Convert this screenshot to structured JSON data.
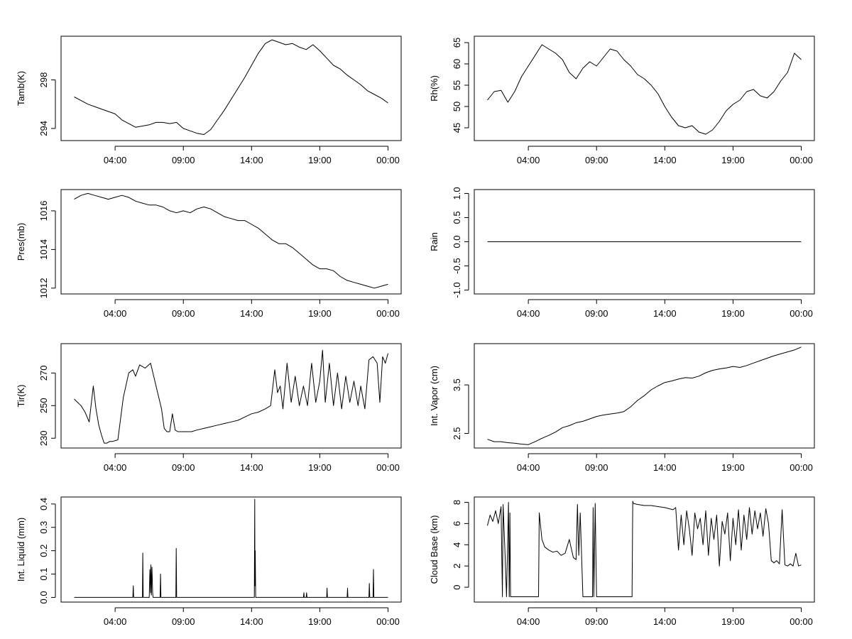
{
  "chart_data": [
    {
      "type": "line",
      "ylabel": "Tamb(K)",
      "xlabel": "",
      "x_ticks": [
        "04:00",
        "09:00",
        "14:00",
        "19:00",
        "00:00"
      ],
      "y_ticks": [
        294,
        298
      ],
      "ylim": [
        293.0,
        301.6
      ],
      "series": [
        {
          "x": [
            1.0,
            1.5,
            2.0,
            2.5,
            3.0,
            3.5,
            4.0,
            4.5,
            5.0,
            5.5,
            6.0,
            6.5,
            7.0,
            7.5,
            8.0,
            8.5,
            9.0,
            9.5,
            10.0,
            10.5,
            11.0,
            11.5,
            12.0,
            12.5,
            13.0,
            13.5,
            14.0,
            14.5,
            15.0,
            15.5,
            16.0,
            16.5,
            17.0,
            17.5,
            18.0,
            18.5,
            19.0,
            19.5,
            20.0,
            20.5,
            21.0,
            21.5,
            22.0,
            22.5,
            23.0,
            23.5,
            24.0
          ],
          "y": [
            296.6,
            296.3,
            296.0,
            295.8,
            295.6,
            295.4,
            295.2,
            294.7,
            294.4,
            294.1,
            294.2,
            294.3,
            294.5,
            294.5,
            294.4,
            294.5,
            294.0,
            293.8,
            293.6,
            293.5,
            293.9,
            294.7,
            295.5,
            296.4,
            297.3,
            298.2,
            299.2,
            300.2,
            301.0,
            301.3,
            301.1,
            300.9,
            301.0,
            300.7,
            300.5,
            300.9,
            300.4,
            299.8,
            299.2,
            298.9,
            298.4,
            298.0,
            297.6,
            297.1,
            296.8,
            296.5,
            296.1
          ]
        }
      ]
    },
    {
      "type": "line",
      "ylabel": "Rh(%)",
      "xlabel": "",
      "x_ticks": [
        "04:00",
        "09:00",
        "14:00",
        "19:00",
        "00:00"
      ],
      "y_ticks": [
        45,
        50,
        55,
        60,
        65
      ],
      "ylim": [
        42.0,
        66.5
      ],
      "series": [
        {
          "x": [
            1.0,
            1.5,
            2.0,
            2.5,
            3.0,
            3.5,
            4.0,
            4.5,
            5.0,
            5.5,
            6.0,
            6.5,
            7.0,
            7.5,
            8.0,
            8.5,
            9.0,
            9.5,
            10.0,
            10.5,
            11.0,
            11.5,
            12.0,
            12.5,
            13.0,
            13.5,
            14.0,
            14.5,
            15.0,
            15.5,
            16.0,
            16.5,
            17.0,
            17.5,
            18.0,
            18.5,
            19.0,
            19.5,
            20.0,
            20.5,
            21.0,
            21.5,
            22.0,
            22.5,
            23.0,
            23.5,
            24.0
          ],
          "y": [
            51.5,
            53.5,
            53.8,
            51.0,
            53.5,
            57.0,
            59.5,
            62.0,
            64.5,
            63.5,
            62.5,
            61.0,
            58.0,
            56.5,
            59.0,
            60.5,
            59.5,
            61.5,
            63.5,
            63.0,
            61.0,
            59.5,
            57.5,
            56.5,
            55.0,
            53.0,
            50.0,
            47.5,
            45.5,
            45.0,
            45.5,
            44.0,
            43.5,
            44.5,
            46.5,
            49.0,
            50.5,
            51.5,
            53.5,
            54.0,
            52.5,
            52.0,
            53.5,
            56.0,
            58.0,
            62.5,
            61.0
          ]
        }
      ]
    },
    {
      "type": "line",
      "ylabel": "Pres(mb)",
      "xlabel": "",
      "x_ticks": [
        "04:00",
        "09:00",
        "14:00",
        "19:00",
        "00:00"
      ],
      "y_ticks": [
        1012,
        1014,
        1016
      ],
      "ylim": [
        1011.7,
        1017.1
      ],
      "series": [
        {
          "x": [
            1.0,
            1.5,
            2.0,
            2.5,
            3.0,
            3.5,
            4.0,
            4.5,
            5.0,
            5.5,
            6.0,
            6.5,
            7.0,
            7.5,
            8.0,
            8.5,
            9.0,
            9.5,
            10.0,
            10.5,
            11.0,
            11.5,
            12.0,
            12.5,
            13.0,
            13.5,
            14.0,
            14.5,
            15.0,
            15.5,
            16.0,
            16.5,
            17.0,
            17.5,
            18.0,
            18.5,
            19.0,
            19.5,
            20.0,
            20.5,
            21.0,
            21.5,
            22.0,
            22.5,
            23.0,
            23.5,
            24.0
          ],
          "y": [
            1016.6,
            1016.8,
            1016.9,
            1016.8,
            1016.7,
            1016.6,
            1016.7,
            1016.8,
            1016.7,
            1016.5,
            1016.4,
            1016.3,
            1016.3,
            1016.2,
            1016.0,
            1015.9,
            1016.0,
            1015.9,
            1016.1,
            1016.2,
            1016.1,
            1015.9,
            1015.7,
            1015.6,
            1015.5,
            1015.5,
            1015.3,
            1015.1,
            1014.8,
            1014.5,
            1014.3,
            1014.3,
            1014.1,
            1013.8,
            1013.5,
            1013.2,
            1013.0,
            1013.0,
            1012.9,
            1012.6,
            1012.4,
            1012.3,
            1012.2,
            1012.1,
            1012.0,
            1012.1,
            1012.2
          ]
        }
      ]
    },
    {
      "type": "line",
      "ylabel": "Rain",
      "xlabel": "",
      "x_ticks": [
        "04:00",
        "09:00",
        "14:00",
        "19:00",
        "00:00"
      ],
      "y_ticks": [
        "-1.0",
        "-0.5",
        "0.0",
        "0.5",
        "1.0"
      ],
      "ylim": [
        -1.08,
        1.08
      ],
      "series": [
        {
          "x": [
            1.0,
            24.0
          ],
          "y": [
            0.0,
            0.0
          ]
        }
      ]
    },
    {
      "type": "line",
      "ylabel": "Tir(K)",
      "xlabel": "",
      "x_ticks": [
        "04:00",
        "09:00",
        "14:00",
        "19:00",
        "00:00"
      ],
      "y_ticks": [
        230,
        250,
        270
      ],
      "ylim": [
        224.0,
        288.0
      ],
      "series": [
        {
          "x": [
            1.0,
            1.5,
            1.8,
            2.1,
            2.4,
            2.6,
            2.8,
            3.0,
            3.2,
            3.4,
            3.6,
            3.8,
            4.2,
            4.6,
            5.0,
            5.3,
            5.5,
            5.8,
            6.2,
            6.6,
            7.0,
            7.4,
            7.6,
            7.8,
            8.0,
            8.2,
            8.4,
            8.6,
            8.8,
            9.0,
            9.6,
            10.0,
            10.5,
            11.0,
            11.5,
            12.0,
            12.5,
            13.0,
            13.5,
            14.0,
            14.5,
            15.0,
            15.4,
            15.7,
            15.9,
            16.1,
            16.3,
            16.6,
            16.9,
            17.2,
            17.5,
            17.8,
            18.1,
            18.4,
            18.7,
            19.0,
            19.2,
            19.4,
            19.7,
            20.0,
            20.3,
            20.6,
            20.9,
            21.2,
            21.5,
            21.8,
            22.0,
            22.3,
            22.6,
            22.9,
            23.2,
            23.4,
            23.6,
            23.8,
            24.0
          ],
          "y": [
            254,
            250,
            246,
            240,
            262,
            248,
            238,
            232,
            227,
            227,
            228,
            228,
            229,
            255,
            270,
            272,
            268,
            275,
            273,
            276,
            262,
            248,
            236,
            234,
            234,
            245,
            235,
            234,
            234,
            234,
            234,
            235,
            236,
            237,
            238,
            239,
            240,
            241,
            243,
            245,
            246,
            248,
            250,
            272,
            258,
            262,
            248,
            276,
            252,
            268,
            250,
            262,
            250,
            276,
            252,
            265,
            284,
            252,
            276,
            250,
            270,
            248,
            268,
            252,
            265,
            250,
            262,
            248,
            278,
            280,
            276,
            252,
            280,
            276,
            282
          ]
        }
      ]
    },
    {
      "type": "line",
      "ylabel": "Int. Vapor (cm)",
      "xlabel": "",
      "x_ticks": [
        "04:00",
        "09:00",
        "14:00",
        "19:00",
        "00:00"
      ],
      "y_ticks": [
        2.5,
        3.5
      ],
      "ylim": [
        2.2,
        4.35
      ],
      "series": [
        {
          "x": [
            1.0,
            1.5,
            2.0,
            2.5,
            3.0,
            3.5,
            4.0,
            4.5,
            5.0,
            5.5,
            6.0,
            6.5,
            7.0,
            7.5,
            8.0,
            8.5,
            9.0,
            9.5,
            10.0,
            10.5,
            11.0,
            11.5,
            12.0,
            12.5,
            13.0,
            13.5,
            14.0,
            14.5,
            15.0,
            15.5,
            16.0,
            16.5,
            17.0,
            17.5,
            18.0,
            18.5,
            19.0,
            19.5,
            20.0,
            20.5,
            21.0,
            21.5,
            22.0,
            22.5,
            23.0,
            23.5,
            24.0
          ],
          "y": [
            2.38,
            2.33,
            2.33,
            2.31,
            2.3,
            2.28,
            2.27,
            2.33,
            2.4,
            2.46,
            2.53,
            2.62,
            2.66,
            2.72,
            2.75,
            2.8,
            2.85,
            2.88,
            2.9,
            2.92,
            2.95,
            3.05,
            3.18,
            3.28,
            3.4,
            3.48,
            3.55,
            3.58,
            3.62,
            3.65,
            3.64,
            3.68,
            3.75,
            3.8,
            3.83,
            3.85,
            3.88,
            3.86,
            3.9,
            3.95,
            4.0,
            4.05,
            4.1,
            4.14,
            4.18,
            4.22,
            4.28
          ]
        }
      ]
    },
    {
      "type": "line",
      "ylabel": "Int. Liquid (mm)",
      "xlabel": "",
      "x_ticks": [
        "04:00",
        "09:00",
        "14:00",
        "19:00",
        "00:00"
      ],
      "y_ticks": [
        "0.0",
        "0.1",
        "0.2",
        "0.3",
        "0.4"
      ],
      "ylim": [
        -0.02,
        0.43
      ],
      "series": [
        {
          "x": [
            1.0,
            5.3,
            5.33,
            5.36,
            6.0,
            6.03,
            6.06,
            6.5,
            6.55,
            6.6,
            6.62,
            6.65,
            6.7,
            6.75,
            6.78,
            7.3,
            7.33,
            7.36,
            8.45,
            8.48,
            8.51,
            14.2,
            14.23,
            14.25,
            14.27,
            14.3,
            17.8,
            17.83,
            17.86,
            18.0,
            18.03,
            18.06,
            19.5,
            19.53,
            19.56,
            21.0,
            21.03,
            21.06,
            22.6,
            22.63,
            22.66,
            22.9,
            22.93,
            22.96,
            24.0
          ],
          "y": [
            0.0,
            0.0,
            0.05,
            0.0,
            0.0,
            0.19,
            0.0,
            0.0,
            0.12,
            0.02,
            0.14,
            0.01,
            0.13,
            0.02,
            0.0,
            0.0,
            0.1,
            0.0,
            0.0,
            0.21,
            0.0,
            0.0,
            0.42,
            0.05,
            0.2,
            0.0,
            0.0,
            0.02,
            0.0,
            0.0,
            0.02,
            0.0,
            0.0,
            0.04,
            0.0,
            0.0,
            0.04,
            0.0,
            0.0,
            0.06,
            0.0,
            0.0,
            0.12,
            0.0,
            0.0
          ]
        }
      ]
    },
    {
      "type": "line",
      "ylabel": "Cloud Base (km)",
      "xlabel": "",
      "x_ticks": [
        "04:00",
        "09:00",
        "14:00",
        "19:00",
        "00:00"
      ],
      "y_ticks": [
        0,
        2,
        4,
        6,
        8
      ],
      "ylim": [
        -1.4,
        8.5
      ],
      "series": [
        {
          "x": [
            1.0,
            1.2,
            1.4,
            1.6,
            1.8,
            2.0,
            2.1,
            2.15,
            2.3,
            2.4,
            2.55,
            2.6,
            2.65,
            2.7,
            2.75,
            2.8,
            3.0,
            3.5,
            4.0,
            4.5,
            4.75,
            4.8,
            5.0,
            5.2,
            5.5,
            5.8,
            6.1,
            6.4,
            6.7,
            7.0,
            7.3,
            7.5,
            7.6,
            7.7,
            7.8,
            8.0,
            8.05,
            8.2,
            8.5,
            8.7,
            8.75,
            8.8,
            8.9,
            9.0,
            10.0,
            11.0,
            11.6,
            11.65,
            11.7,
            12.0,
            12.5,
            13.0,
            13.5,
            14.0,
            14.3,
            14.6,
            14.8,
            15.0,
            15.2,
            15.4,
            15.6,
            15.8,
            16.0,
            16.2,
            16.4,
            16.6,
            16.8,
            17.0,
            17.2,
            17.4,
            17.6,
            17.8,
            18.0,
            18.2,
            18.4,
            18.6,
            18.8,
            19.0,
            19.2,
            19.4,
            19.6,
            19.8,
            20.0,
            20.2,
            20.4,
            20.6,
            20.8,
            21.0,
            21.2,
            21.4,
            21.6,
            21.8,
            22.0,
            22.2,
            22.4,
            22.6,
            22.8,
            23.0,
            23.2,
            23.4,
            23.6,
            23.8,
            24.0
          ],
          "y": [
            5.8,
            6.8,
            6.2,
            7.2,
            6.0,
            7.6,
            -0.9,
            7.8,
            3.0,
            -0.9,
            8.0,
            -0.9,
            7.0,
            -0.9,
            -0.9,
            -0.9,
            -0.9,
            -0.9,
            -0.9,
            -0.9,
            -0.9,
            7.0,
            4.5,
            3.8,
            3.5,
            3.3,
            3.4,
            3.0,
            3.2,
            4.5,
            2.8,
            2.6,
            7.8,
            3.0,
            7.0,
            -0.9,
            -0.9,
            -0.9,
            -0.9,
            -0.9,
            7.5,
            -0.9,
            7.9,
            -0.9,
            -0.9,
            -0.9,
            -0.9,
            8.1,
            7.9,
            7.8,
            7.7,
            7.7,
            7.6,
            7.5,
            7.4,
            7.3,
            7.5,
            3.5,
            6.8,
            4.0,
            7.2,
            5.5,
            3.0,
            7.0,
            5.5,
            6.5,
            4.0,
            7.2,
            3.0,
            6.5,
            4.5,
            6.8,
            2.0,
            6.2,
            5.0,
            7.0,
            2.5,
            6.5,
            4.0,
            7.3,
            3.5,
            6.8,
            4.5,
            7.5,
            5.0,
            7.2,
            5.5,
            7.0,
            4.8,
            7.4,
            6.0,
            2.5,
            2.3,
            2.5,
            2.2,
            7.3,
            2.1,
            2.0,
            2.2,
            2.0,
            3.2,
            2.0,
            2.1
          ]
        }
      ]
    }
  ]
}
